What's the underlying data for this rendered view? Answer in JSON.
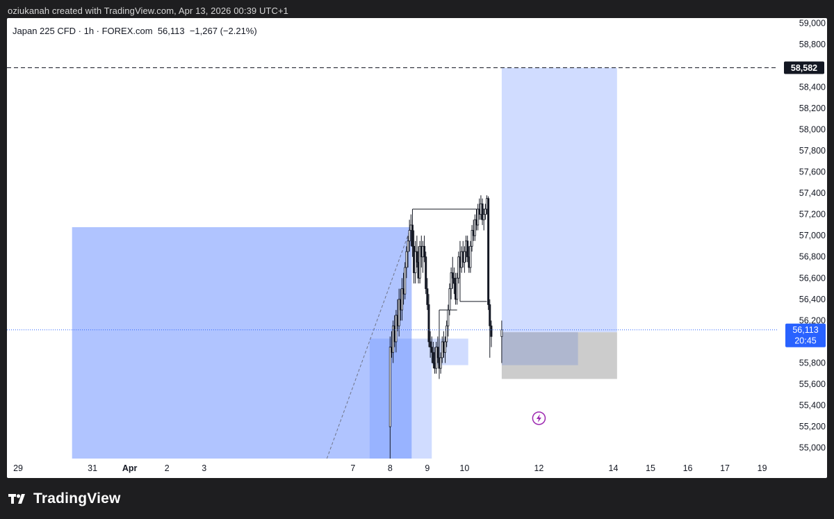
{
  "header": {
    "credit_text": "oziukanah created with TradingView.com, Apr 13, 2026 00:39 UTC+1"
  },
  "legend": {
    "symbol": "Japan 225 CFD · 1h · FOREX.com",
    "last": "56,113",
    "change": "−1,267 (−2.21%)"
  },
  "footer": {
    "brand_name": "TradingView",
    "logo_icon": "tradingview-logo-icon"
  },
  "colors": {
    "candle_body": "#131722",
    "zone_blue_dark": "#98b3ff",
    "zone_blue_mid": "#b0c4ff",
    "zone_blue_light": "#d0dcff",
    "zone_gray": "#c9c9c9",
    "price_label_bg": "#2962ff",
    "dashed_label_bg": "#131722",
    "alert_icon": "#9c27b0"
  },
  "chart_data": {
    "type": "candlestick",
    "symbol": "Japan 225 CFD",
    "interval": "1h",
    "y_axis": {
      "min": 54900,
      "max": 59050,
      "tick_values": [
        55000,
        55200,
        55400,
        55600,
        55800,
        56000,
        56200,
        56400,
        56600,
        56800,
        57000,
        57200,
        57400,
        57600,
        57800,
        58000,
        58200,
        58400,
        58800,
        59000
      ],
      "tick_labels": [
        "55,000",
        "55,200",
        "55,400",
        "55,600",
        "55,800",
        "56,000",
        "56,200",
        "56,400",
        "56,600",
        "56,800",
        "57,000",
        "57,200",
        "57,400",
        "57,600",
        "57,800",
        "58,000",
        "58,200",
        "58,400",
        "58,800",
        "59,000"
      ]
    },
    "x_axis": {
      "min_day": 28.7,
      "max_day": 49.4,
      "tick_days": [
        29,
        31,
        32,
        33,
        34,
        38,
        39,
        40,
        41,
        43,
        45,
        46,
        47,
        48,
        49
      ],
      "tick_labels": [
        "29",
        "31",
        "Apr",
        "2",
        "3",
        "7",
        "8",
        "9",
        "10",
        "12",
        "14",
        "15",
        "16",
        "17",
        "19"
      ]
    },
    "current_price": {
      "value": 56113,
      "label": "56,113",
      "countdown": "20:45"
    },
    "dashed_level": {
      "value": 58582,
      "label": "58,582"
    },
    "candles": [
      {
        "x": 39.0,
        "o": 55200,
        "h": 56050,
        "l": 54900,
        "c": 55950
      },
      {
        "x": 39.04,
        "o": 55950,
        "h": 56100,
        "l": 55850,
        "c": 55900
      },
      {
        "x": 39.08,
        "o": 55900,
        "h": 56200,
        "l": 55800,
        "c": 56150
      },
      {
        "x": 39.12,
        "o": 56150,
        "h": 56250,
        "l": 55950,
        "c": 56000
      },
      {
        "x": 39.16,
        "o": 56000,
        "h": 56300,
        "l": 55900,
        "c": 56250
      },
      {
        "x": 39.2,
        "o": 56250,
        "h": 56400,
        "l": 56100,
        "c": 56150
      },
      {
        "x": 39.24,
        "o": 56150,
        "h": 56500,
        "l": 56050,
        "c": 56400
      },
      {
        "x": 39.28,
        "o": 56400,
        "h": 56500,
        "l": 56200,
        "c": 56300
      },
      {
        "x": 39.32,
        "o": 56300,
        "h": 56600,
        "l": 56200,
        "c": 56500
      },
      {
        "x": 39.36,
        "o": 56500,
        "h": 56650,
        "l": 56350,
        "c": 56450
      },
      {
        "x": 39.4,
        "o": 56450,
        "h": 56750,
        "l": 56400,
        "c": 56700
      },
      {
        "x": 39.44,
        "o": 56700,
        "h": 56900,
        "l": 56600,
        "c": 56850
      },
      {
        "x": 39.48,
        "o": 56850,
        "h": 57000,
        "l": 56700,
        "c": 56950
      },
      {
        "x": 39.52,
        "o": 56950,
        "h": 57150,
        "l": 56850,
        "c": 57050
      },
      {
        "x": 39.56,
        "o": 57050,
        "h": 57200,
        "l": 56900,
        "c": 57100
      },
      {
        "x": 39.6,
        "o": 57100,
        "h": 57150,
        "l": 56800,
        "c": 56900
      },
      {
        "x": 39.64,
        "o": 56900,
        "h": 57050,
        "l": 56550,
        "c": 56650
      },
      {
        "x": 39.68,
        "o": 56650,
        "h": 56950,
        "l": 56550,
        "c": 56850
      },
      {
        "x": 39.72,
        "o": 56850,
        "h": 57000,
        "l": 56700,
        "c": 56750
      },
      {
        "x": 39.76,
        "o": 56750,
        "h": 56900,
        "l": 56550,
        "c": 56600
      },
      {
        "x": 39.8,
        "o": 56600,
        "h": 56950,
        "l": 56550,
        "c": 56900
      },
      {
        "x": 39.84,
        "o": 56900,
        "h": 57000,
        "l": 56700,
        "c": 56800
      },
      {
        "x": 39.88,
        "o": 56800,
        "h": 56950,
        "l": 56650,
        "c": 56900
      },
      {
        "x": 39.92,
        "o": 56900,
        "h": 57000,
        "l": 56750,
        "c": 56800
      },
      {
        "x": 39.96,
        "o": 56800,
        "h": 56850,
        "l": 56450,
        "c": 56500
      },
      {
        "x": 40.0,
        "o": 56500,
        "h": 56600,
        "l": 56300,
        "c": 56350
      },
      {
        "x": 40.04,
        "o": 56350,
        "h": 56450,
        "l": 55950,
        "c": 56000
      },
      {
        "x": 40.08,
        "o": 56000,
        "h": 56100,
        "l": 55850,
        "c": 55950
      },
      {
        "x": 40.12,
        "o": 55950,
        "h": 56050,
        "l": 55800,
        "c": 55900
      },
      {
        "x": 40.16,
        "o": 55900,
        "h": 56000,
        "l": 55750,
        "c": 55800
      },
      {
        "x": 40.2,
        "o": 55800,
        "h": 55950,
        "l": 55700,
        "c": 55750
      },
      {
        "x": 40.24,
        "o": 55750,
        "h": 56000,
        "l": 55700,
        "c": 55950
      },
      {
        "x": 40.28,
        "o": 55950,
        "h": 56050,
        "l": 55800,
        "c": 55850
      },
      {
        "x": 40.32,
        "o": 55850,
        "h": 56000,
        "l": 55650,
        "c": 55750
      },
      {
        "x": 40.36,
        "o": 55750,
        "h": 55900,
        "l": 55700,
        "c": 55850
      },
      {
        "x": 40.4,
        "o": 55850,
        "h": 56050,
        "l": 55800,
        "c": 56000
      },
      {
        "x": 40.44,
        "o": 56000,
        "h": 56100,
        "l": 55850,
        "c": 55900
      },
      {
        "x": 40.48,
        "o": 55900,
        "h": 56050,
        "l": 55800,
        "c": 56000
      },
      {
        "x": 40.52,
        "o": 56000,
        "h": 56200,
        "l": 55950,
        "c": 56150
      },
      {
        "x": 40.56,
        "o": 56150,
        "h": 56350,
        "l": 56050,
        "c": 56300
      },
      {
        "x": 40.6,
        "o": 56300,
        "h": 56550,
        "l": 56250,
        "c": 56500
      },
      {
        "x": 40.64,
        "o": 56500,
        "h": 56700,
        "l": 56400,
        "c": 56650
      },
      {
        "x": 40.68,
        "o": 56650,
        "h": 56800,
        "l": 56500,
        "c": 56600
      },
      {
        "x": 40.72,
        "o": 56600,
        "h": 56700,
        "l": 56450,
        "c": 56550
      },
      {
        "x": 40.76,
        "o": 56550,
        "h": 56650,
        "l": 56350,
        "c": 56400
      },
      {
        "x": 40.8,
        "o": 56400,
        "h": 56650,
        "l": 56350,
        "c": 56600
      },
      {
        "x": 40.84,
        "o": 56600,
        "h": 56850,
        "l": 56550,
        "c": 56800
      },
      {
        "x": 40.88,
        "o": 56800,
        "h": 56950,
        "l": 56650,
        "c": 56700
      },
      {
        "x": 40.92,
        "o": 56700,
        "h": 56900,
        "l": 56650,
        "c": 56850
      },
      {
        "x": 40.96,
        "o": 56850,
        "h": 56950,
        "l": 56700,
        "c": 56750
      },
      {
        "x": 41.0,
        "o": 56750,
        "h": 56900,
        "l": 56650,
        "c": 56850
      },
      {
        "x": 41.04,
        "o": 56850,
        "h": 57000,
        "l": 56750,
        "c": 56950
      },
      {
        "x": 41.08,
        "o": 56950,
        "h": 57000,
        "l": 56750,
        "c": 56800
      },
      {
        "x": 41.12,
        "o": 56800,
        "h": 56900,
        "l": 56650,
        "c": 56700
      },
      {
        "x": 41.16,
        "o": 56700,
        "h": 56950,
        "l": 56650,
        "c": 56900
      },
      {
        "x": 41.2,
        "o": 56900,
        "h": 57100,
        "l": 56850,
        "c": 57050
      },
      {
        "x": 41.24,
        "o": 57050,
        "h": 57150,
        "l": 56950,
        "c": 57000
      },
      {
        "x": 41.28,
        "o": 57000,
        "h": 57200,
        "l": 56950,
        "c": 57150
      },
      {
        "x": 41.32,
        "o": 57150,
        "h": 57250,
        "l": 57050,
        "c": 57100
      },
      {
        "x": 41.36,
        "o": 57100,
        "h": 57300,
        "l": 57050,
        "c": 57250
      },
      {
        "x": 41.4,
        "o": 57250,
        "h": 57350,
        "l": 57150,
        "c": 57200
      },
      {
        "x": 41.44,
        "o": 57200,
        "h": 57380,
        "l": 57150,
        "c": 57300
      },
      {
        "x": 41.48,
        "o": 57300,
        "h": 57350,
        "l": 57100,
        "c": 57150
      },
      {
        "x": 41.52,
        "o": 57150,
        "h": 57250,
        "l": 57050,
        "c": 57200
      },
      {
        "x": 41.56,
        "o": 57200,
        "h": 57300,
        "l": 57150,
        "c": 57250
      },
      {
        "x": 41.6,
        "o": 57250,
        "h": 57380,
        "l": 57200,
        "c": 57350
      },
      {
        "x": 41.64,
        "o": 57350,
        "h": 57370,
        "l": 56300,
        "c": 56350
      },
      {
        "x": 41.68,
        "o": 56350,
        "h": 56400,
        "l": 55850,
        "c": 56150
      },
      {
        "x": 41.72,
        "o": 56150,
        "h": 56200,
        "l": 55950,
        "c": 56050
      },
      {
        "x": 42.0,
        "o": 56050,
        "h": 56200,
        "l": 55800,
        "c": 56113
      }
    ],
    "zones": [
      {
        "label": "blue-zone-left",
        "x0": 30.45,
        "x1": 39.58,
        "y0": 54900,
        "y1": 57080
      },
      {
        "label": "blue-zone-dark",
        "x0": 38.45,
        "x1": 39.58,
        "y0": 54900,
        "y1": 56030
      },
      {
        "label": "blue-zone-light-bottom",
        "x0": 39.58,
        "x1": 40.12,
        "y0": 54900,
        "y1": 56030
      },
      {
        "label": "blue-zone-light-mid",
        "x0": 40.12,
        "x1": 41.1,
        "y0": 55780,
        "y1": 56030
      },
      {
        "label": "target-zone-top",
        "x0": 42.0,
        "x1": 45.1,
        "y0": 56090,
        "y1": 58582
      },
      {
        "label": "gray-zone",
        "x0": 42.0,
        "x1": 45.1,
        "y0": 55650,
        "y1": 56090
      },
      {
        "label": "overlap-zone",
        "x0": 42.0,
        "x1": 44.05,
        "y0": 55780,
        "y1": 56090
      }
    ],
    "structure_lines": [
      {
        "label": "swing-high-line",
        "x0": 39.6,
        "x1": 41.6,
        "y": 57250
      },
      {
        "label": "mid-line-upper",
        "x0": 40.32,
        "x1": 40.8,
        "y": 56300
      },
      {
        "label": "mid-line-lower",
        "x0": 40.88,
        "x1": 41.6,
        "y": 56380
      }
    ],
    "dashed_trend": {
      "x0": 37.3,
      "y0": 54900,
      "x1": 39.56,
      "y1": 57080
    },
    "alert_marker_day": 43.0
  }
}
